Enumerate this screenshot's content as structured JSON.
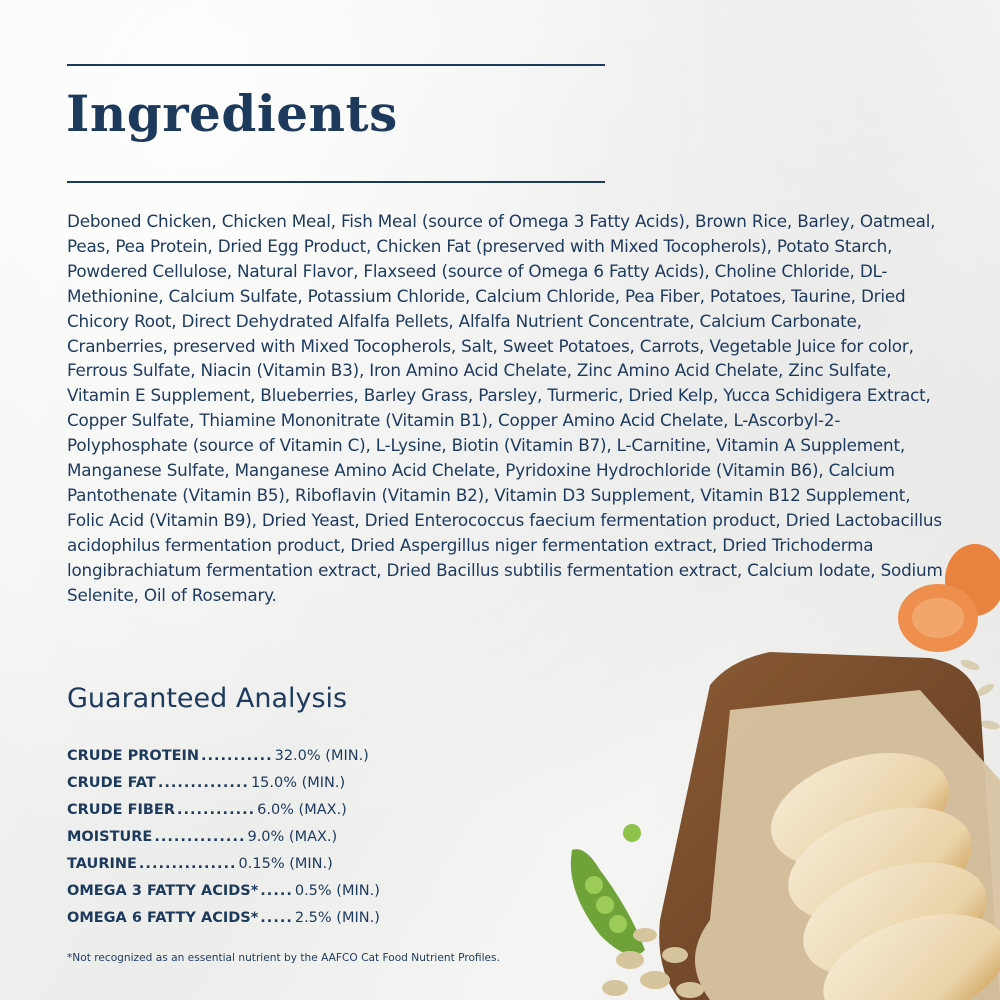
{
  "header": {
    "title": "Ingredients"
  },
  "ingredients_text": "Deboned Chicken, Chicken Meal, Fish Meal (source of Omega 3 Fatty Acids), Brown Rice, Barley, Oatmeal, Peas, Pea Protein, Dried Egg Product, Chicken Fat (preserved with Mixed Tocopherols), Potato Starch, Powdered Cellulose, Natural Flavor, Flaxseed (source of Omega 6 Fatty Acids), Choline Chloride, DL-Methionine, Calcium Sulfate, Potassium Chloride, Calcium Chloride, Pea Fiber, Potatoes, Taurine, Dried Chicory Root, Direct Dehydrated Alfalfa Pellets, Alfalfa Nutrient Concentrate, Calcium Carbonate, Cranberries, preserved with Mixed Tocopherols, Salt, Sweet Potatoes, Carrots, Vegetable Juice for color, Ferrous Sulfate, Niacin (Vitamin B3), Iron Amino Acid Chelate, Zinc Amino Acid Chelate, Zinc Sulfate, Vitamin E Supplement, Blueberries, Barley Grass, Parsley, Turmeric, Dried Kelp, Yucca Schidigera Extract, Copper Sulfate, Thiamine Mononitrate (Vitamin B1), Copper Amino Acid Chelate, L-Ascorbyl-2-Polyphosphate (source of Vitamin C), L-Lysine, Biotin (Vitamin B7), L-Carnitine, Vitamin A Supplement, Manganese Sulfate, Manganese Amino Acid Chelate, Pyridoxine Hydrochloride (Vitamin B6), Calcium Pantothenate (Vitamin B5), Riboflavin (Vitamin B2), Vitamin D3 Supplement, Vitamin B12 Supplement, Folic Acid (Vitamin B9), Dried Yeast, Dried Enterococcus faecium fermentation product, Dried Lactobacillus acidophilus fermentation product, Dried Aspergillus niger fermentation extract, Dried Trichoderma longibrachiatum fermentation extract, Dried Bacillus subtilis fermentation extract, Calcium Iodate, Sodium Selenite, Oil of Rosemary.",
  "analysis": {
    "title": "Guaranteed Analysis",
    "rows": [
      {
        "nutrient": "CRUDE PROTEIN",
        "leader": "...........",
        "value": "32.0% (MIN.)"
      },
      {
        "nutrient": "CRUDE FAT",
        "leader": "..............",
        "value": "15.0% (MIN.)"
      },
      {
        "nutrient": "CRUDE FIBER",
        "leader": "............",
        "value": "6.0% (MAX.)"
      },
      {
        "nutrient": "MOISTURE",
        "leader": "..............",
        "value": "9.0% (MAX.)"
      },
      {
        "nutrient": "TAURINE",
        "leader": "...............",
        "value": "0.15% (MIN.)"
      },
      {
        "nutrient": "OMEGA 3 FATTY ACIDS*",
        "leader": ".....",
        "value": "0.5% (MIN.)"
      },
      {
        "nutrient": "OMEGA 6 FATTY ACIDS*",
        "leader": ".....",
        "value": "2.5% (MIN.)"
      }
    ],
    "footnote": "*Not recognized as an essential nutrient by the AAFCO Cat Food Nutrient Profiles."
  },
  "colors": {
    "navy": "#1d3a5c",
    "background": "#f3f3f2"
  }
}
